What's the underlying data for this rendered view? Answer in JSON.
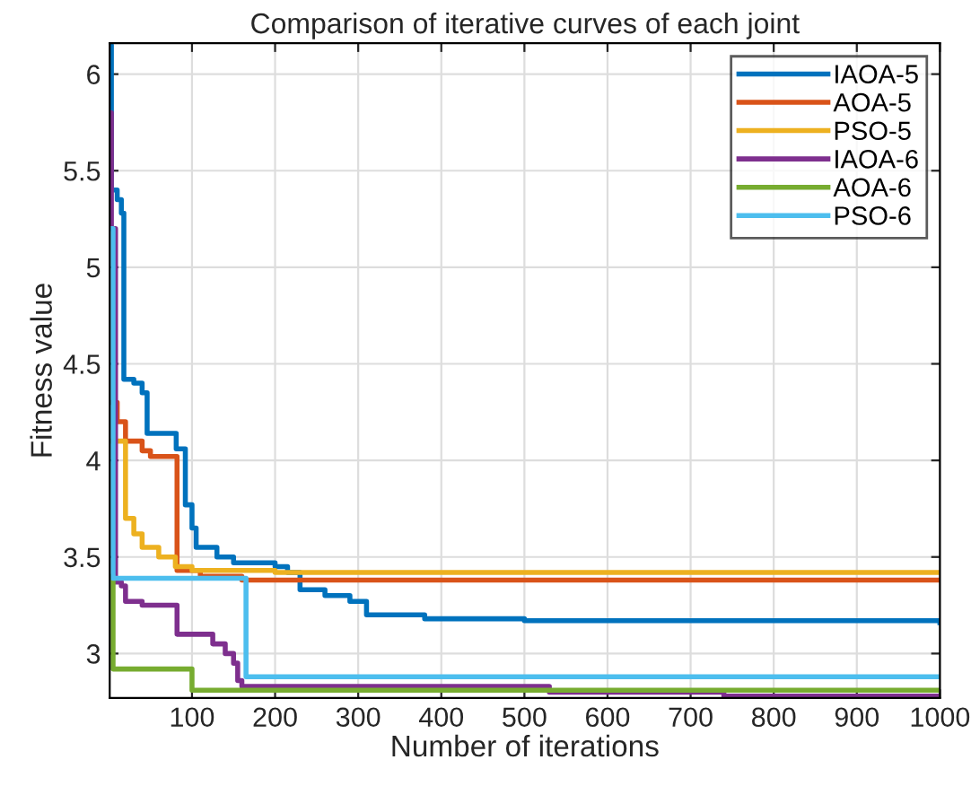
{
  "chart_data": {
    "type": "step",
    "title": "Comparison of iterative curves of each joint",
    "xlabel": "Number of iterations",
    "ylabel": "Fitness value",
    "xlim": [
      1,
      1000
    ],
    "ylim": [
      2.77,
      6.16
    ],
    "xticks": [
      100,
      200,
      300,
      400,
      500,
      600,
      700,
      800,
      900,
      1000
    ],
    "yticks": [
      3,
      3.5,
      4,
      4.5,
      5,
      5.5,
      6
    ],
    "grid": true,
    "legend": "top right",
    "series": [
      {
        "name": "IAOA-5",
        "color": "#0072bd",
        "x": [
          1,
          3,
          10,
          15,
          18,
          30,
          40,
          46,
          81,
          92,
          100,
          105,
          130,
          150,
          200,
          215,
          230,
          260,
          290,
          310,
          380,
          500,
          1000
        ],
        "values": [
          6.15,
          5.4,
          5.35,
          5.28,
          4.42,
          4.4,
          4.35,
          4.14,
          4.06,
          3.77,
          3.65,
          3.55,
          3.5,
          3.47,
          3.45,
          3.42,
          3.33,
          3.3,
          3.27,
          3.2,
          3.18,
          3.17,
          3.16
        ]
      },
      {
        "name": "AOA-5",
        "color": "#d95319",
        "x": [
          1,
          10,
          20,
          40,
          50,
          82,
          110,
          160,
          1000
        ],
        "values": [
          4.3,
          4.2,
          4.1,
          4.05,
          4.02,
          3.43,
          3.4,
          3.38,
          3.38
        ]
      },
      {
        "name": "PSO-5",
        "color": "#edb120",
        "x": [
          1,
          20,
          30,
          40,
          60,
          80,
          100,
          200,
          1000
        ],
        "values": [
          4.1,
          3.7,
          3.62,
          3.55,
          3.5,
          3.45,
          3.43,
          3.42,
          3.42
        ]
      },
      {
        "name": "IAOA-6",
        "color": "#7e2f8e",
        "x": [
          1,
          3,
          8,
          15,
          20,
          40,
          82,
          125,
          140,
          150,
          155,
          160,
          530,
          740,
          1000
        ],
        "values": [
          5.8,
          5.2,
          3.37,
          3.35,
          3.27,
          3.25,
          3.1,
          3.05,
          3.0,
          2.95,
          2.86,
          2.83,
          2.8,
          2.78,
          2.78
        ]
      },
      {
        "name": "AOA-6",
        "color": "#77ac30",
        "x": [
          1,
          5,
          100,
          1000
        ],
        "values": [
          3.4,
          2.92,
          2.81,
          2.81
        ]
      },
      {
        "name": "PSO-6",
        "color": "#4dbeee",
        "x": [
          1,
          5,
          165,
          1000
        ],
        "values": [
          5.2,
          3.39,
          2.88,
          2.88
        ]
      }
    ]
  }
}
